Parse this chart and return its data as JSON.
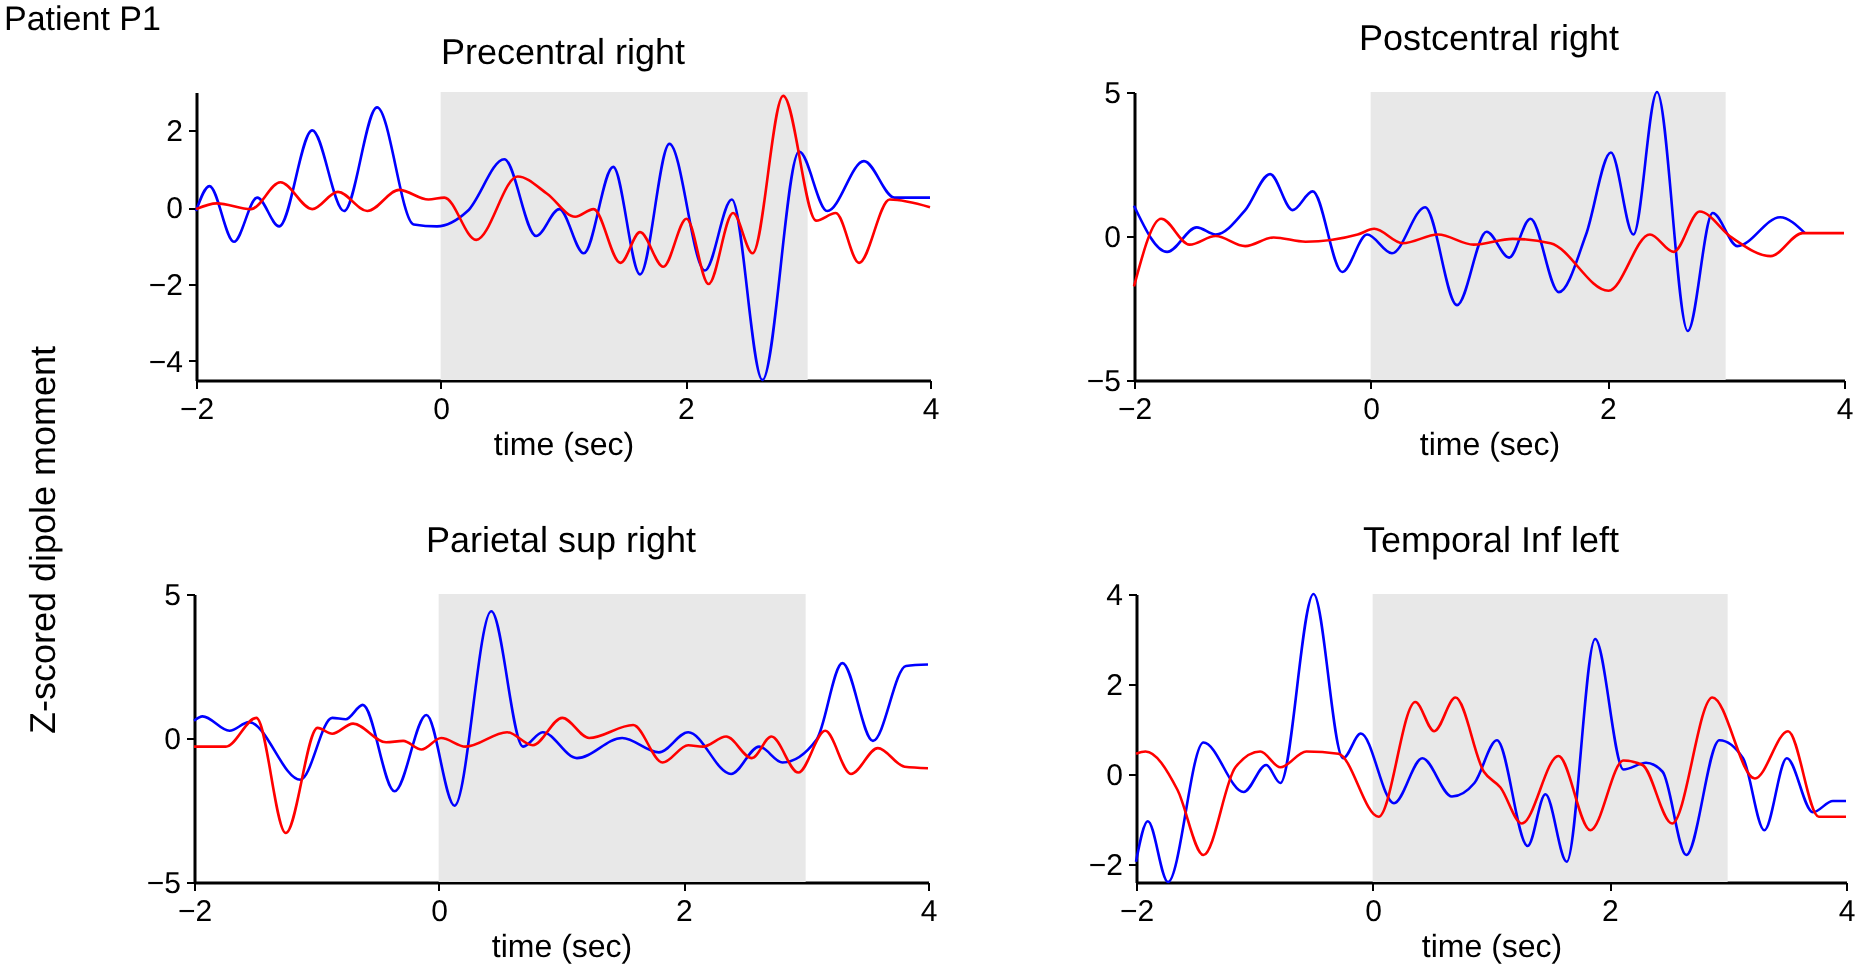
{
  "chart_data": [
    {
      "type": "line",
      "title": "Precentral right",
      "xlabel": "time (sec)",
      "ylabel": "Z-scored dipole moment",
      "annotations": [
        "Patient P1"
      ],
      "xlim": [
        -2,
        4
      ],
      "xticks": [
        -2,
        0,
        2,
        4
      ],
      "ylim": [
        -4.5,
        3
      ],
      "yticks": [
        -4,
        -2,
        0,
        2
      ],
      "grid": false,
      "line_style": "solid",
      "bands": [
        {
          "axis": "x",
          "from": 0,
          "to": 3,
          "color": "#e8e8e8"
        }
      ],
      "series": [
        {
          "color": "#0000ff",
          "x": [
            -2,
            -1.89,
            -1.69,
            -1.5,
            -1.32,
            -1.05,
            -0.79,
            -0.52,
            -0.22,
            -0.03,
            0.22,
            0.52,
            0.78,
            0.97,
            1.17,
            1.41,
            1.63,
            1.87,
            2.16,
            2.38,
            2.63,
            2.93,
            3.16,
            3.46,
            3.71,
            4
          ],
          "values": [
            -0.1,
            0.55,
            -0.9,
            0.25,
            -0.5,
            2.0,
            -0.1,
            2.6,
            -0.45,
            -0.5,
            -0.1,
            1.25,
            -0.75,
            -0.05,
            -1.2,
            1.05,
            -1.75,
            1.65,
            -1.65,
            0.2,
            -4.5,
            1.45,
            -0.1,
            1.2,
            0.25,
            0.25
          ]
        },
        {
          "color": "#ff0000",
          "x": [
            -2,
            -1.83,
            -1.55,
            -1.31,
            -1.05,
            -0.84,
            -0.6,
            -0.34,
            -0.1,
            0.03,
            0.29,
            0.63,
            0.87,
            1.1,
            1.25,
            1.47,
            1.63,
            1.82,
            2.01,
            2.19,
            2.39,
            2.55,
            2.8,
            3.07,
            3.23,
            3.42,
            3.67,
            4
          ],
          "values": [
            -0.05,
            0.1,
            -0.05,
            0.65,
            -0.05,
            0.4,
            -0.1,
            0.45,
            0.2,
            0.25,
            -0.85,
            0.8,
            0.35,
            -0.25,
            -0.05,
            -1.45,
            -0.65,
            -1.55,
            -0.3,
            -2.0,
            -0.15,
            -1.2,
            2.9,
            -0.35,
            -0.15,
            -1.45,
            0.2,
            0
          ]
        }
      ]
    },
    {
      "type": "line",
      "title": "Postcentral right",
      "xlabel": "time (sec)",
      "xlim": [
        -2,
        4
      ],
      "xticks": [
        -2,
        0,
        2,
        4
      ],
      "ylim": [
        -5,
        5
      ],
      "yticks": [
        -5,
        0,
        5
      ],
      "grid": false,
      "line_style": "solid",
      "bands": [
        {
          "axis": "x",
          "from": 0,
          "to": 3,
          "color": "#e8e8e8"
        }
      ],
      "series": [
        {
          "color": "#0000ff",
          "x": [
            -2,
            -1.72,
            -1.47,
            -1.31,
            -1.06,
            -0.85,
            -0.66,
            -0.49,
            -0.24,
            -0.03,
            0.18,
            0.46,
            0.73,
            0.98,
            1.17,
            1.35,
            1.59,
            1.82,
            2.03,
            2.22,
            2.42,
            2.68,
            2.89,
            3.1,
            3.46,
            3.67
          ],
          "values": [
            1.05,
            -0.55,
            0.3,
            0.05,
            0.9,
            2.15,
            0.9,
            1.55,
            -1.25,
            0.05,
            -0.6,
            1.0,
            -2.4,
            0.15,
            -0.75,
            0.6,
            -1.95,
            0.05,
            2.9,
            0.05,
            5.0,
            -3.3,
            0.8,
            -0.35,
            0.65,
            0.1
          ]
        },
        {
          "color": "#ff0000",
          "x": [
            -2,
            -1.77,
            -1.53,
            -1.31,
            -1.06,
            -0.82,
            -0.55,
            -0.11,
            0.03,
            0.27,
            0.57,
            0.87,
            1.2,
            1.52,
            2.01,
            2.36,
            2.56,
            2.78,
            3.05,
            3.38,
            3.65,
            4
          ],
          "values": [
            -1.75,
            0.6,
            -0.3,
            0,
            -0.35,
            -0.05,
            -0.2,
            0.05,
            0.25,
            -0.25,
            0.05,
            -0.3,
            -0.1,
            -0.25,
            -1.9,
            0.05,
            -0.55,
            0.85,
            -0.05,
            -0.7,
            0.1,
            0.1
          ]
        }
      ]
    },
    {
      "type": "line",
      "title": "Parietal sup right",
      "xlabel": "time (sec)",
      "xlim": [
        -2,
        4
      ],
      "xticks": [
        -2,
        0,
        2,
        4
      ],
      "ylim": [
        -5,
        5
      ],
      "yticks": [
        -5,
        0,
        5
      ],
      "grid": false,
      "line_style": "solid",
      "bands": [
        {
          "axis": "x",
          "from": 0,
          "to": 3,
          "color": "#e8e8e8"
        }
      ],
      "series": [
        {
          "color": "#0000ff",
          "x": [
            -2,
            -1.93,
            -1.71,
            -1.55,
            -1.13,
            -0.87,
            -0.76,
            -0.62,
            -0.36,
            -0.1,
            0.13,
            0.43,
            0.69,
            0.85,
            1.13,
            1.5,
            1.8,
            2.04,
            2.39,
            2.62,
            2.81,
            3.09,
            3.3,
            3.55,
            3.82,
            4
          ],
          "values": [
            0.6,
            0.75,
            0.25,
            0.55,
            -1.45,
            0.7,
            0.65,
            1.15,
            -1.85,
            0.8,
            -2.35,
            4.4,
            -0.3,
            0.2,
            -0.7,
            0,
            -0.5,
            0.2,
            -1.25,
            -0.3,
            -0.85,
            -0.05,
            2.6,
            -0.1,
            2.5,
            2.55
          ]
        },
        {
          "color": "#ff0000",
          "x": [
            -2,
            -1.74,
            -1.49,
            -1.25,
            -0.99,
            -0.87,
            -0.7,
            -0.43,
            -0.29,
            -0.14,
            0.02,
            0.22,
            0.56,
            0.77,
            1.01,
            1.23,
            1.59,
            1.83,
            2.04,
            2.16,
            2.35,
            2.56,
            2.72,
            2.94,
            3.16,
            3.37,
            3.59,
            3.81,
            4
          ],
          "values": [
            -0.3,
            -0.3,
            0.7,
            -3.3,
            0.35,
            0.15,
            0.5,
            -0.15,
            -0.1,
            -0.4,
            0,
            -0.3,
            0.2,
            -0.25,
            0.7,
            0,
            0.45,
            -0.85,
            -0.25,
            -0.3,
            0.05,
            -0.7,
            0.05,
            -1.2,
            0.25,
            -1.25,
            -0.35,
            -1.0,
            -1.05
          ]
        }
      ]
    },
    {
      "type": "line",
      "title": "Temporal Inf left",
      "xlabel": "time (sec)",
      "xlim": [
        -2,
        4
      ],
      "xticks": [
        -2,
        0,
        2,
        4
      ],
      "ylim": [
        -2.4,
        4
      ],
      "yticks": [
        -2,
        0,
        2,
        4
      ],
      "grid": false,
      "line_style": "solid",
      "bands": [
        {
          "axis": "x",
          "from": 0,
          "to": 3,
          "color": "#e8e8e8"
        }
      ],
      "series": [
        {
          "color": "#0000ff",
          "x": [
            -2,
            -1.9,
            -1.73,
            -1.43,
            -1.09,
            -0.9,
            -0.78,
            -0.5,
            -0.25,
            -0.1,
            0.18,
            0.42,
            0.67,
            0.86,
            1.05,
            1.31,
            1.46,
            1.64,
            1.88,
            2.12,
            2.31,
            2.45,
            2.65,
            2.93,
            3.13,
            3.31,
            3.5,
            3.72,
            3.89,
            4
          ],
          "values": [
            -1.95,
            -1.05,
            -2.4,
            0.7,
            -0.4,
            0.2,
            -0.2,
            4.0,
            0.35,
            0.9,
            -0.65,
            0.35,
            -0.5,
            -0.2,
            0.75,
            -1.6,
            -0.45,
            -1.95,
            3.0,
            0.1,
            0.25,
            0.05,
            -1.8,
            0.75,
            0.35,
            -1.25,
            0.35,
            -0.85,
            -0.6,
            -0.6
          ]
        },
        {
          "color": "#ff0000",
          "x": [
            -2,
            -1.92,
            -1.65,
            -1.43,
            -1.16,
            -0.95,
            -0.78,
            -0.56,
            -0.29,
            0.05,
            0.36,
            0.52,
            0.7,
            0.94,
            1.08,
            1.26,
            1.57,
            1.84,
            2.12,
            2.28,
            2.53,
            2.87,
            3.23,
            3.51,
            3.77,
            4
          ],
          "values": [
            0.45,
            0.5,
            -0.35,
            -1.8,
            0.15,
            0.5,
            0.15,
            0.5,
            0.45,
            -0.95,
            1.6,
            0.95,
            1.7,
            0.05,
            -0.3,
            -1.1,
            0.4,
            -1.25,
            0.3,
            0.2,
            -1.1,
            1.7,
            -0.1,
            0.95,
            -0.95,
            -0.95
          ]
        }
      ]
    }
  ]
}
